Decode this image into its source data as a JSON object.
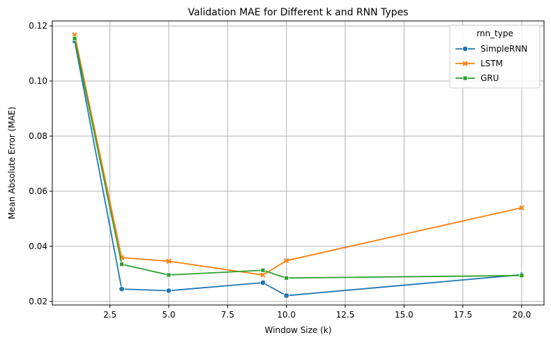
{
  "chart_data": {
    "type": "line",
    "title": "Validation MAE for Different k and RNN Types",
    "xlabel": "Window Size (k)",
    "ylabel": "Mean Absolute Error (MAE)",
    "xlim": [
      0.05,
      20.95
    ],
    "ylim": [
      0.0187,
      0.1218
    ],
    "xticks": [
      "2.5",
      "5.0",
      "7.5",
      "10.0",
      "12.5",
      "15.0",
      "17.5",
      "20.0"
    ],
    "yticks": [
      "0.02",
      "0.04",
      "0.06",
      "0.08",
      "0.10",
      "0.12"
    ],
    "grid": true,
    "legend": {
      "title": "rnn_type",
      "placement": "top-right"
    },
    "series": [
      {
        "name": "SimpleRNN",
        "color": "#1f77b4",
        "marker": "circle",
        "x": [
          1,
          3,
          5,
          9,
          10,
          20
        ],
        "y": [
          0.1145,
          0.0245,
          0.0239,
          0.0268,
          0.0221,
          0.0297
        ]
      },
      {
        "name": "LSTM",
        "color": "#ff7f0e",
        "marker": "x",
        "x": [
          1,
          3,
          5,
          9,
          10,
          20
        ],
        "y": [
          0.1168,
          0.0359,
          0.0346,
          0.0296,
          0.0348,
          0.054
        ]
      },
      {
        "name": "GRU",
        "color": "#2ca02c",
        "marker": "square",
        "x": [
          1,
          3,
          5,
          9,
          10,
          20
        ],
        "y": [
          0.1154,
          0.0335,
          0.0296,
          0.0313,
          0.0285,
          0.0294
        ]
      }
    ]
  }
}
